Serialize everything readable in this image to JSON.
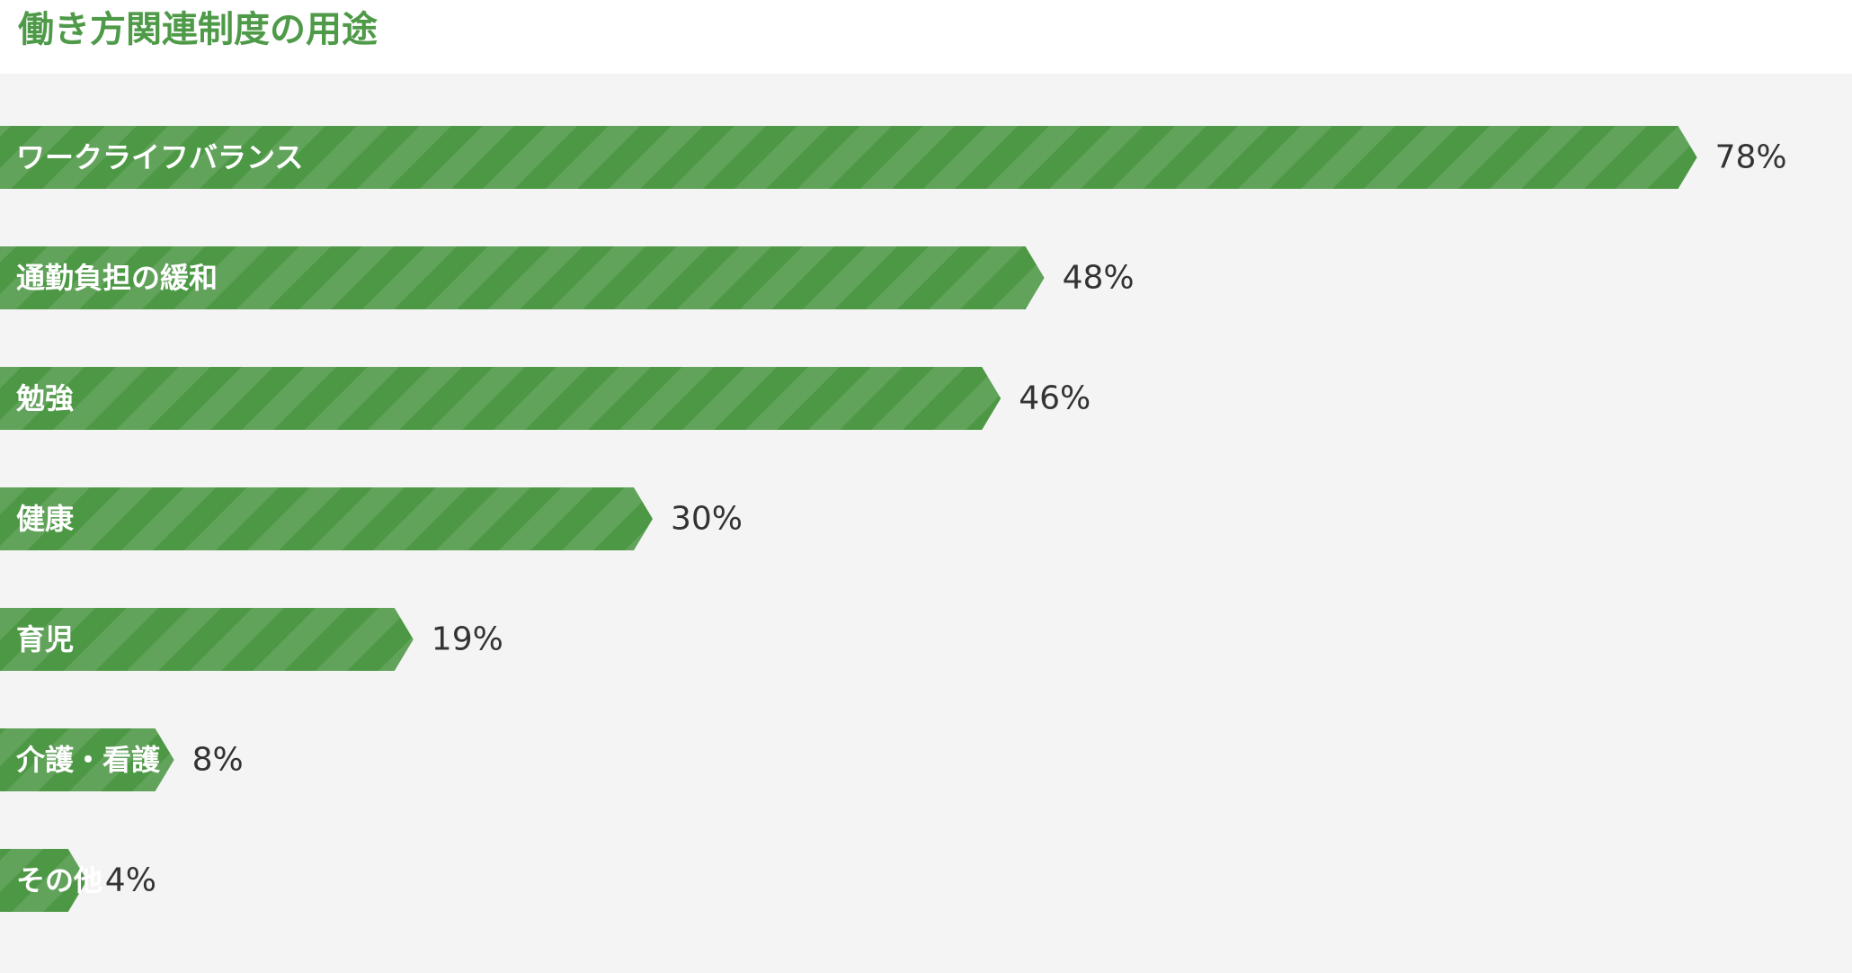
{
  "chart_data": {
    "type": "bar",
    "orientation": "horizontal",
    "title": "働き方関連制度の用途",
    "categories": [
      "ワークライフバランス",
      "通勤負担の緩和",
      "勉強",
      "健康",
      "育児",
      "介護・看護",
      "その他"
    ],
    "values": [
      78,
      48,
      46,
      30,
      19,
      8,
      4
    ],
    "value_labels": [
      "78%",
      "48%",
      "46%",
      "30%",
      "19%",
      "8%",
      "4%"
    ],
    "unit": "%",
    "grid": false,
    "legend": "none",
    "colors": {
      "title": "#4f9a48",
      "bar_dark": "#4d9845",
      "bar_light": "#62a35b",
      "panel": "#f4f4f4",
      "value_text": "#333333"
    }
  }
}
